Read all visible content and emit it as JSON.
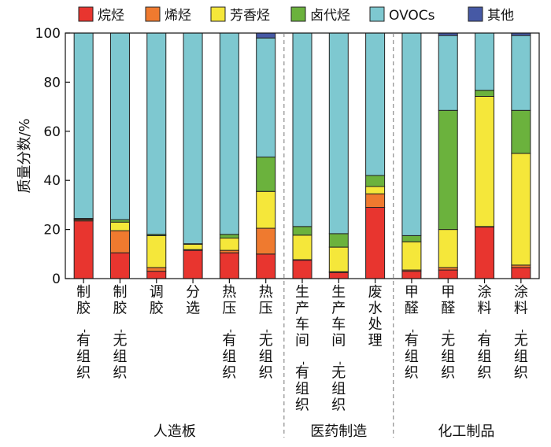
{
  "chart_data": {
    "type": "bar",
    "stacked": true,
    "ylabel": "质量分数/%",
    "ylim": [
      0,
      100
    ],
    "yticks": [
      0,
      20,
      40,
      60,
      80,
      100
    ],
    "grid": false,
    "legend_position": "top",
    "categories": [
      "制胶-有组织",
      "制胶-无组织",
      "调胶",
      "分选",
      "热压-有组织",
      "热压-无组织",
      "生产车间-有组织",
      "生产车间-无组织",
      "废水处理",
      "甲醛-有组织",
      "甲醛-无组织",
      "涂料-有组织",
      "涂料-无组织"
    ],
    "groups": [
      {
        "label": "人造板",
        "categories": [
          0,
          1,
          2,
          3,
          4,
          5
        ]
      },
      {
        "label": "医药制造",
        "categories": [
          6,
          7,
          8
        ]
      },
      {
        "label": "化工制品",
        "categories": [
          9,
          10,
          11,
          12
        ]
      }
    ],
    "series": [
      {
        "name": "烷烃",
        "color": "#e8352f",
        "values": [
          23.5,
          10.5,
          3.0,
          11.5,
          10.5,
          10.0,
          7.5,
          2.5,
          29.0,
          3.0,
          3.5,
          21.0,
          4.5
        ]
      },
      {
        "name": "烯烃",
        "color": "#ef7a2f",
        "values": [
          0.5,
          9.0,
          1.5,
          0.3,
          1.0,
          10.5,
          0.2,
          0.3,
          5.5,
          0.5,
          1.0,
          0.2,
          1.0
        ]
      },
      {
        "name": "芳香烃",
        "color": "#f5e73a",
        "values": [
          0.3,
          3.5,
          13.0,
          2.2,
          5.0,
          15.0,
          10.0,
          10.0,
          3.0,
          11.5,
          15.5,
          53.0,
          45.5
        ]
      },
      {
        "name": "卤代烃",
        "color": "#6bb23d",
        "values": [
          0.2,
          1.0,
          0.5,
          0.2,
          1.5,
          14.0,
          3.5,
          5.5,
          4.5,
          2.5,
          48.5,
          2.5,
          17.5
        ]
      },
      {
        "name": "OVOCs",
        "color": "#7ec8d0",
        "values": [
          75.5,
          76.0,
          82.0,
          85.8,
          82.0,
          48.5,
          78.8,
          81.7,
          58.0,
          82.5,
          30.5,
          23.3,
          30.5
        ]
      },
      {
        "name": "其他",
        "color": "#4659a5",
        "values": [
          0,
          0,
          0,
          0,
          0,
          2.0,
          0,
          0,
          0,
          0,
          1.0,
          0,
          1.0
        ]
      }
    ]
  }
}
